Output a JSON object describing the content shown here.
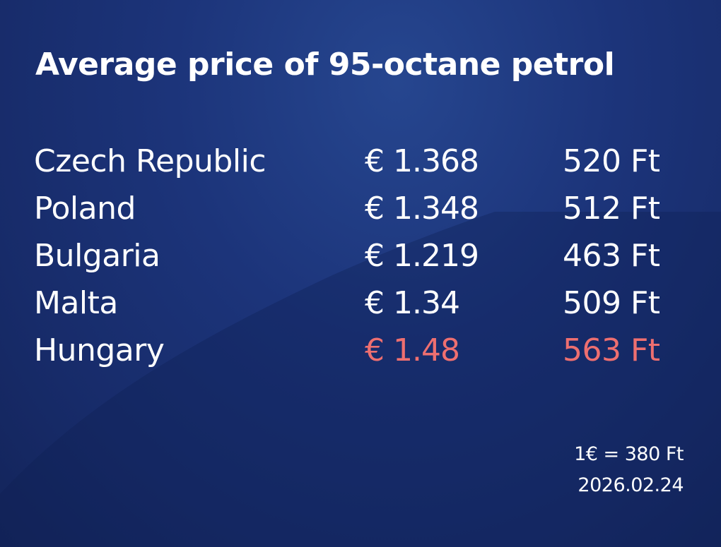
{
  "title": "Average price of 95-octane petrol",
  "rows": [
    {
      "country": "Czech Republic",
      "eur": "€ 1.368",
      "huf": "520 Ft"
    },
    {
      "country": "Poland",
      "eur": "€ 1.348",
      "huf": "512 Ft"
    },
    {
      "country": "Bulgaria",
      "eur": "€ 1.219",
      "huf": "463 Ft"
    },
    {
      "country": "Malta",
      "eur": "€ 1.34",
      "huf": "509 Ft"
    },
    {
      "country": "Hungary",
      "eur": "€ 1.48",
      "huf": "563 Ft"
    }
  ],
  "highlight_color": "#ee6f70",
  "footer": {
    "rate": "1€ = 380 Ft",
    "date": "2026.02.24"
  }
}
